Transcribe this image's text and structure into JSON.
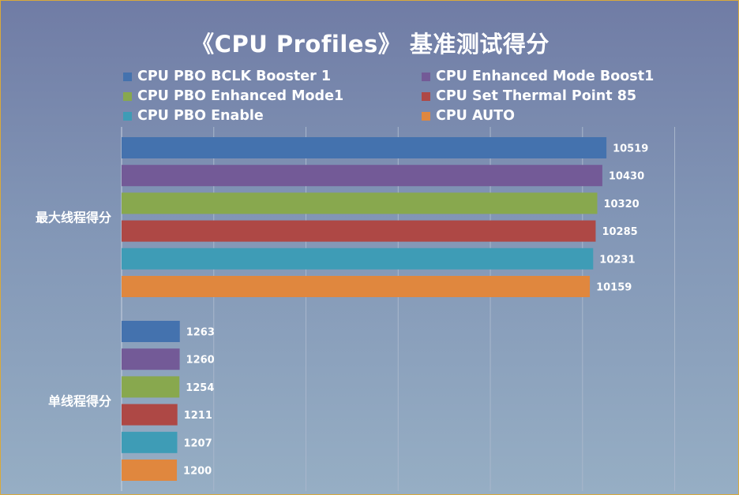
{
  "chart_data": {
    "type": "bar",
    "orientation": "horizontal",
    "title": "《CPU Profiles》 基准测试得分",
    "categories": [
      "最大线程得分",
      "单线程得分"
    ],
    "series": [
      {
        "name": "CPU PBO BCLK Booster 1",
        "color": "#4472ae",
        "values": [
          10519,
          1263
        ]
      },
      {
        "name": "CPU Enhanced Mode Boost1",
        "color": "#735a97",
        "values": [
          10430,
          1260
        ]
      },
      {
        "name": "CPU PBO Enhanced Mode1",
        "color": "#88a84e",
        "values": [
          10320,
          1254
        ]
      },
      {
        "name": "CPU Set Thermal Point 85",
        "color": "#ae4845",
        "values": [
          10285,
          1211
        ]
      },
      {
        "name": "CPU PBO Enable",
        "color": "#3e9cb6",
        "values": [
          10231,
          1207
        ]
      },
      {
        "name": "CPU AUTO",
        "color": "#e0873e",
        "values": [
          10159,
          1200
        ]
      }
    ],
    "xlim": [
      0,
      12000
    ],
    "grid": true,
    "legend": "top, two columns",
    "xlabel": "",
    "ylabel": ""
  }
}
